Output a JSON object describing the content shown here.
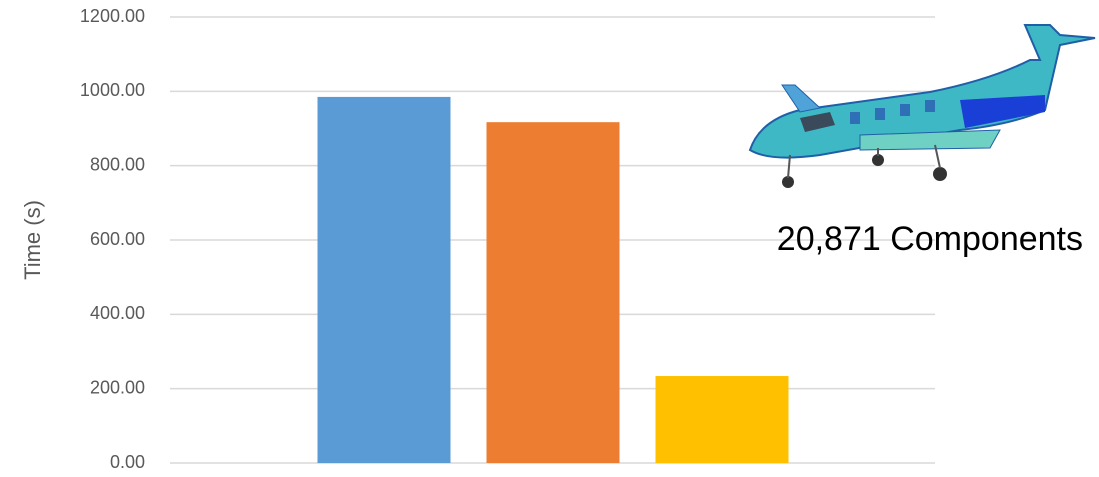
{
  "chart_data": {
    "type": "bar",
    "y_axis_label": "Time (s)",
    "annotation": "20,871 Components",
    "categories": [
      null,
      null,
      null
    ],
    "values": [
      985,
      917,
      234
    ],
    "colors": [
      "#5b9bd5",
      "#ed7d31",
      "#ffc000"
    ],
    "ylim": [
      0,
      1200
    ],
    "yticks": [
      {
        "value": 0,
        "label": "0.00"
      },
      {
        "value": 200,
        "label": "200.00"
      },
      {
        "value": 400,
        "label": "400.00"
      },
      {
        "value": 600,
        "label": "600.00"
      },
      {
        "value": 800,
        "label": "800.00"
      },
      {
        "value": 1000,
        "label": "1000.00"
      },
      {
        "value": 1200,
        "label": "1200.00"
      }
    ],
    "grid": true
  }
}
